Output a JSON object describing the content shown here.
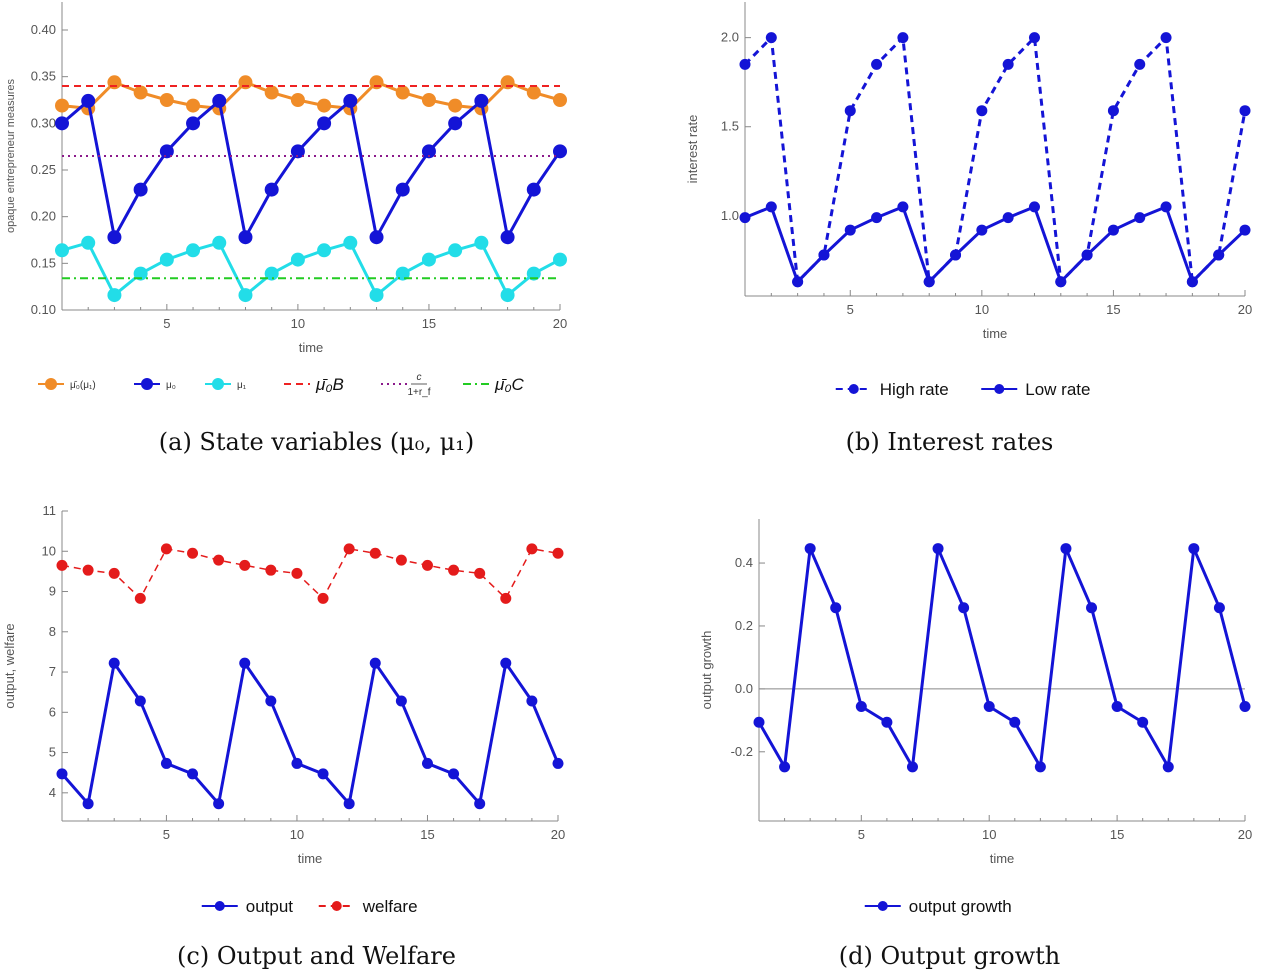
{
  "panels": {
    "a": {
      "caption": "(a) State variables (μ₀, μ₁)",
      "chart_data": {
        "type": "line",
        "xlabel": "time",
        "ylabel": "opaque entrepreneur measures",
        "xlim": [
          1,
          20
        ],
        "ylim": [
          0.1,
          0.43
        ],
        "x_ticks": [
          5,
          10,
          15,
          20
        ],
        "y_ticks": [
          0.1,
          0.15,
          0.2,
          0.25,
          0.3,
          0.35,
          0.4
        ],
        "x": [
          1,
          2,
          3,
          4,
          5,
          6,
          7,
          8,
          9,
          10,
          11,
          12,
          13,
          14,
          15,
          16,
          17,
          18,
          19,
          20
        ],
        "series": [
          {
            "name": "μ̄₀(μ₁)",
            "color": "#f08c28",
            "style": "solid-dots",
            "values": [
              0.319,
              0.316,
              0.344,
              0.333,
              0.325,
              0.319,
              0.316,
              0.344,
              0.333,
              0.325,
              0.319,
              0.316,
              0.344,
              0.333,
              0.325,
              0.319,
              0.316,
              0.344,
              0.333,
              0.325
            ]
          },
          {
            "name": "μ₀",
            "color": "#1414d6",
            "style": "solid-dots",
            "values": [
              0.3,
              0.324,
              0.178,
              0.229,
              0.27,
              0.3,
              0.324,
              0.178,
              0.229,
              0.27,
              0.3,
              0.324,
              0.178,
              0.229,
              0.27,
              0.3,
              0.324,
              0.178,
              0.229,
              0.27
            ]
          },
          {
            "name": "μ₁",
            "color": "#22dde8",
            "style": "solid-dots",
            "values": [
              0.164,
              0.172,
              0.116,
              0.139,
              0.154,
              0.164,
              0.172,
              0.116,
              0.139,
              0.154,
              0.164,
              0.172,
              0.116,
              0.139,
              0.154,
              0.164,
              0.172,
              0.116,
              0.139,
              0.154
            ]
          },
          {
            "name": "μ̄₀B",
            "color": "#ee2222",
            "style": "dashed",
            "constant": 0.34
          },
          {
            "name": "c/(1+r_f)",
            "color": "#8b1a8b",
            "style": "dotted",
            "constant": 0.265
          },
          {
            "name": "μ̄₀C",
            "color": "#22cc22",
            "style": "dashdot",
            "constant": 0.134
          }
        ],
        "legend_position": "bottom"
      }
    },
    "b": {
      "caption": "(b) Interest rates",
      "chart_data": {
        "type": "line",
        "xlabel": "time",
        "ylabel": "interest rate",
        "xlim": [
          1,
          20
        ],
        "ylim": [
          0.55,
          2.2
        ],
        "x_ticks": [
          5,
          10,
          15,
          20
        ],
        "y_ticks": [
          1.0,
          1.5,
          2.0
        ],
        "x": [
          1,
          2,
          3,
          4,
          5,
          6,
          7,
          8,
          9,
          10,
          11,
          12,
          13,
          14,
          15,
          16,
          17,
          18,
          19,
          20
        ],
        "series": [
          {
            "name": "High rate",
            "color": "#1414d6",
            "style": "dashed-dots",
            "values": [
              1.85,
              2.0,
              0.63,
              0.78,
              1.59,
              1.85,
              2.0,
              0.63,
              0.78,
              1.59,
              1.85,
              2.0,
              0.63,
              0.78,
              1.59,
              1.85,
              2.0,
              0.63,
              0.78,
              1.59
            ]
          },
          {
            "name": "Low rate",
            "color": "#1414d6",
            "style": "solid-dots",
            "values": [
              0.99,
              1.05,
              0.63,
              0.78,
              0.92,
              0.99,
              1.05,
              0.63,
              0.78,
              0.92,
              0.99,
              1.05,
              0.63,
              0.78,
              0.92,
              0.99,
              1.05,
              0.63,
              0.78,
              0.92
            ]
          }
        ],
        "legend_position": "bottom"
      }
    },
    "c": {
      "caption": "(c) Output and Welfare",
      "chart_data": {
        "type": "line",
        "xlabel": "time",
        "ylabel": "output, welfare",
        "xlim": [
          1,
          20
        ],
        "ylim": [
          3.3,
          11
        ],
        "x_ticks": [
          5,
          10,
          15,
          20
        ],
        "y_ticks": [
          4,
          5,
          6,
          7,
          8,
          9,
          10,
          11
        ],
        "x": [
          1,
          2,
          3,
          4,
          5,
          6,
          7,
          8,
          9,
          10,
          11,
          12,
          13,
          14,
          15,
          16,
          17,
          18,
          19,
          20
        ],
        "series": [
          {
            "name": "output",
            "color": "#1414d6",
            "style": "solid-dots",
            "values": [
              4.47,
              3.73,
              7.22,
              6.28,
              4.73,
              4.47,
              3.73,
              7.22,
              6.28,
              4.73,
              4.47,
              3.73,
              7.22,
              6.28,
              4.73,
              4.47,
              3.73,
              7.22,
              6.28,
              4.73
            ]
          },
          {
            "name": "welfare",
            "color": "#e41b1b",
            "style": "dashed-dots",
            "values": [
              9.65,
              9.53,
              9.45,
              8.83,
              10.06,
              9.95,
              9.78,
              9.65,
              9.53,
              9.45,
              8.83,
              10.06,
              9.95,
              9.78,
              9.65,
              9.53,
              9.45,
              8.83,
              10.06,
              9.95
            ]
          }
        ],
        "legend_position": "bottom"
      }
    },
    "d": {
      "caption": "(d) Output growth",
      "chart_data": {
        "type": "line",
        "xlabel": "time",
        "ylabel": "output growth",
        "xlim": [
          1,
          20
        ],
        "ylim": [
          -0.42,
          0.54
        ],
        "x_ticks": [
          5,
          10,
          15,
          20
        ],
        "y_ticks": [
          -0.2,
          0.0,
          0.2,
          0.4
        ],
        "zero_line": true,
        "x": [
          1,
          2,
          3,
          4,
          5,
          6,
          7,
          8,
          9,
          10,
          11,
          12,
          13,
          14,
          15,
          16,
          17,
          18,
          19,
          20
        ],
        "series": [
          {
            "name": "output growth",
            "color": "#1414d6",
            "style": "solid-dots",
            "values": [
              -0.106,
              -0.248,
              0.446,
              0.258,
              -0.056,
              -0.106,
              -0.248,
              0.446,
              0.258,
              -0.056,
              -0.106,
              -0.248,
              0.446,
              0.258,
              -0.056,
              -0.106,
              -0.248,
              0.446,
              0.258,
              -0.056
            ]
          }
        ],
        "legend_position": "bottom"
      }
    }
  }
}
